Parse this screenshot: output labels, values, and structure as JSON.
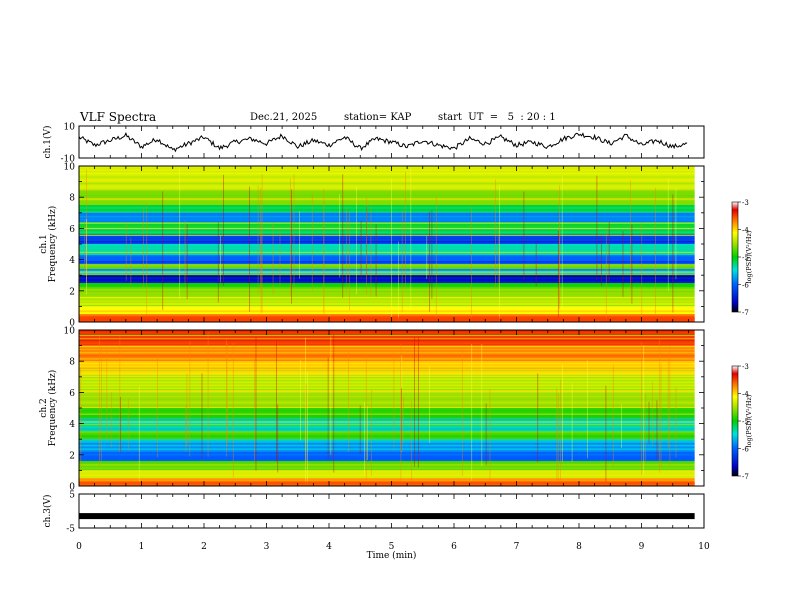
{
  "header": {
    "title": "VLF Spectra",
    "date": "Dec.21, 2025",
    "station": "station= KAP",
    "start": "start  UT  =   5  : 20 : 1"
  },
  "chart_data": [
    {
      "type": "line",
      "panel": "ch1-waveform",
      "ylabel": "ch.1(V)",
      "ylim": [
        -10,
        10
      ],
      "yticks": [
        "10",
        "-10"
      ],
      "x": [
        0,
        0.25,
        0.5,
        0.75,
        1,
        1.25,
        1.5,
        1.75,
        2,
        2.25,
        2.5,
        2.75,
        3,
        3.25,
        3.5,
        3.75,
        4,
        4.25,
        4.5,
        4.75,
        5,
        5.25,
        5.5,
        5.75,
        6,
        6.25,
        6.5,
        6.75,
        7,
        7.25,
        7.5,
        7.75,
        8,
        8.25,
        8.5,
        8.75,
        9,
        9.25,
        9.5,
        9.75
      ],
      "values": [
        3,
        -2,
        1,
        4,
        -3,
        2,
        -5,
        -1,
        3,
        -4,
        0,
        2,
        -1,
        4,
        -3,
        1,
        -2,
        3,
        -4,
        2,
        0,
        -3,
        1,
        -2,
        -4,
        2,
        -1,
        3,
        -2,
        0,
        -3,
        2,
        5,
        3,
        -1,
        4,
        -2,
        1,
        -3,
        -1
      ]
    },
    {
      "type": "heatmap",
      "panel": "ch1-spectrogram",
      "ylabel": "ch.1\nFrequency  (kHz)",
      "ylim": [
        0,
        10
      ],
      "yticks": [
        "0",
        "2",
        "4",
        "6",
        "8",
        "10"
      ],
      "colorbar": {
        "label": "log(PSD)(V²/Hz)",
        "ticks": [
          "-3",
          "-4",
          "-5",
          "-6",
          "-7"
        ],
        "range": [
          -7,
          -3
        ]
      },
      "bands_khz": [
        10,
        8.5,
        7.5,
        7.0,
        6.4,
        5.6,
        5.0,
        4.3,
        3.7,
        3.4,
        3.0,
        2.5,
        2.2,
        1.6,
        1.0,
        0.5,
        0
      ],
      "bands_log_psd": [
        -4.8,
        -5.1,
        -5.7,
        -6.2,
        -5.6,
        -6.4,
        -5.8,
        -6.3,
        -5.2,
        -6.0,
        -6.6,
        -5.4,
        -5.0,
        -4.9,
        -4.6,
        -4.0
      ]
    },
    {
      "type": "heatmap",
      "panel": "ch2-spectrogram",
      "ylabel": "ch.2\nFrequency  (kHz)",
      "ylim": [
        0,
        10
      ],
      "yticks": [
        "0",
        "2",
        "4",
        "6",
        "8",
        "10"
      ],
      "colorbar": {
        "label": "log(PSD)(V²/Hz)",
        "ticks": [
          "-3",
          "-4",
          "-5",
          "-6",
          "-7"
        ],
        "range": [
          -7,
          -3
        ]
      },
      "bands_khz": [
        10,
        9.0,
        8.0,
        7.0,
        6.0,
        5.0,
        4.3,
        3.5,
        3.0,
        2.3,
        1.6,
        1.0,
        0.5,
        0
      ],
      "bands_log_psd": [
        -3.9,
        -4.2,
        -4.5,
        -4.8,
        -5.0,
        -5.4,
        -5.8,
        -5.3,
        -6.0,
        -6.3,
        -5.2,
        -4.8,
        -4.3
      ]
    },
    {
      "type": "line",
      "panel": "ch3-waveform",
      "ylabel": "ch.3(V)",
      "ylim": [
        -5,
        5
      ],
      "yticks": [
        "5",
        "-5"
      ],
      "x": [
        0,
        9.85
      ],
      "values": [
        -1.5,
        -1.5
      ],
      "xlabel": "Time  (min)",
      "xlim": [
        0,
        10
      ],
      "xticks": [
        "0",
        "1",
        "2",
        "3",
        "4",
        "5",
        "6",
        "7",
        "8",
        "9",
        "10"
      ]
    }
  ]
}
